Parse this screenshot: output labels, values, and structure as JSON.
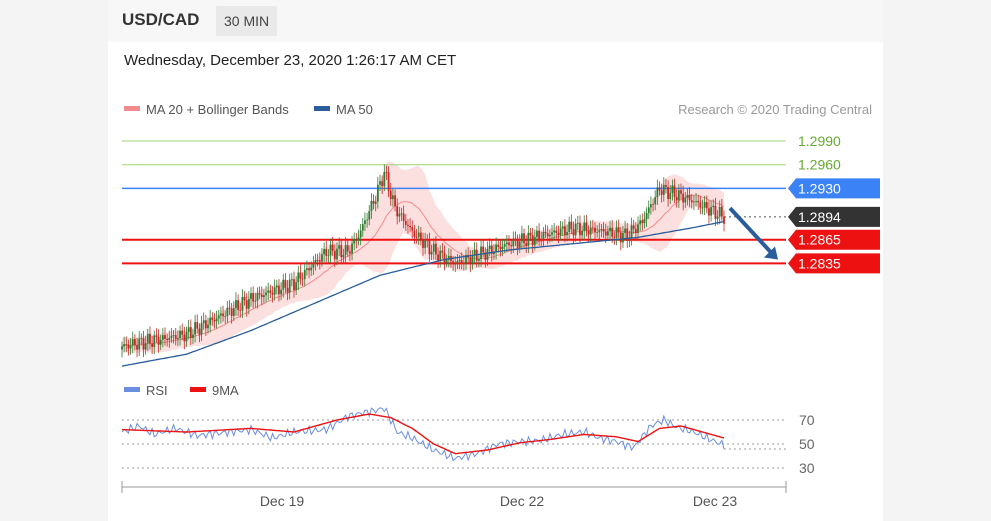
{
  "header": {
    "symbol": "USD/CAD",
    "timeframe": "30 MIN",
    "datetime": "Wednesday, December 23, 2020 1:26:17 AM CET"
  },
  "main_chart": {
    "legend": [
      {
        "label": "MA 20 + Bollinger Bands",
        "color": "#f28b8b"
      },
      {
        "label": "MA 50",
        "color": "#2b5d9b"
      }
    ],
    "credit": "Research © 2020 Trading Central"
  },
  "chart_data": [
    {
      "type": "candlestick",
      "ylim": [
        1.27,
        1.3004
      ],
      "levels": [
        {
          "label": "1.2990",
          "value": 1.299,
          "role": "target",
          "color": "#66aa33"
        },
        {
          "label": "1.2960",
          "value": 1.296,
          "role": "target",
          "color": "#66aa33"
        },
        {
          "label": "1.2930",
          "value": 1.293,
          "role": "resistance",
          "color": "#3b82f6"
        },
        {
          "label": "1.2894",
          "value": 1.2894,
          "role": "last price",
          "color": "#333333"
        },
        {
          "label": "1.2865",
          "value": 1.2865,
          "role": "support",
          "color": "#ee1111"
        },
        {
          "label": "1.2835",
          "value": 1.2835,
          "role": "support",
          "color": "#ee1111"
        }
      ],
      "close_anchors": [
        [
          0,
          1.273
        ],
        [
          10,
          1.2735
        ],
        [
          20,
          1.274
        ],
        [
          30,
          1.2745
        ],
        [
          40,
          1.276
        ],
        [
          50,
          1.2775
        ],
        [
          60,
          1.279
        ],
        [
          70,
          1.28
        ],
        [
          80,
          1.281
        ],
        [
          95,
          1.285
        ],
        [
          105,
          1.285
        ],
        [
          110,
          1.287
        ],
        [
          118,
          1.292
        ],
        [
          122,
          1.295
        ],
        [
          127,
          1.2905
        ],
        [
          135,
          1.2875
        ],
        [
          145,
          1.285
        ],
        [
          155,
          1.2835
        ],
        [
          165,
          1.2845
        ],
        [
          180,
          1.286
        ],
        [
          195,
          1.287
        ],
        [
          210,
          1.288
        ],
        [
          225,
          1.2875
        ],
        [
          235,
          1.287
        ],
        [
          242,
          1.2888
        ],
        [
          250,
          1.293
        ],
        [
          255,
          1.2925
        ],
        [
          265,
          1.2915
        ],
        [
          272,
          1.2905
        ],
        [
          280,
          1.2894
        ]
      ],
      "ma50_anchors": [
        [
          0,
          1.2705
        ],
        [
          30,
          1.272
        ],
        [
          60,
          1.275
        ],
        [
          90,
          1.2785
        ],
        [
          120,
          1.282
        ],
        [
          150,
          1.284
        ],
        [
          180,
          1.2852
        ],
        [
          210,
          1.286
        ],
        [
          240,
          1.2868
        ],
        [
          265,
          1.288
        ],
        [
          280,
          1.2888
        ]
      ],
      "forecast_arrow": {
        "from": 1.2905,
        "to": 1.284
      }
    },
    {
      "type": "line",
      "ylim": [
        20,
        85
      ],
      "yticks": [
        70,
        50,
        30
      ],
      "legend": [
        {
          "label": "RSI",
          "color": "#6b8fe0"
        },
        {
          "label": "9MA",
          "color": "#ee1111"
        }
      ],
      "rsi_anchors": [
        [
          0,
          60
        ],
        [
          8,
          65
        ],
        [
          15,
          58
        ],
        [
          25,
          63
        ],
        [
          35,
          57
        ],
        [
          50,
          60
        ],
        [
          60,
          62
        ],
        [
          70,
          55
        ],
        [
          80,
          60
        ],
        [
          95,
          62
        ],
        [
          105,
          73
        ],
        [
          112,
          76
        ],
        [
          118,
          78
        ],
        [
          122,
          80
        ],
        [
          128,
          60
        ],
        [
          135,
          55
        ],
        [
          145,
          45
        ],
        [
          155,
          38
        ],
        [
          165,
          42
        ],
        [
          175,
          50
        ],
        [
          185,
          52
        ],
        [
          195,
          53
        ],
        [
          205,
          58
        ],
        [
          215,
          60
        ],
        [
          222,
          55
        ],
        [
          230,
          52
        ],
        [
          238,
          47
        ],
        [
          246,
          65
        ],
        [
          252,
          70
        ],
        [
          258,
          64
        ],
        [
          266,
          60
        ],
        [
          272,
          55
        ],
        [
          280,
          49
        ]
      ],
      "ma9_anchors": [
        [
          0,
          62
        ],
        [
          30,
          60
        ],
        [
          60,
          63
        ],
        [
          80,
          60
        ],
        [
          100,
          70
        ],
        [
          115,
          75
        ],
        [
          125,
          72
        ],
        [
          135,
          63
        ],
        [
          145,
          50
        ],
        [
          155,
          42
        ],
        [
          170,
          45
        ],
        [
          185,
          51
        ],
        [
          200,
          54
        ],
        [
          215,
          58
        ],
        [
          230,
          56
        ],
        [
          240,
          52
        ],
        [
          250,
          63
        ],
        [
          260,
          65
        ],
        [
          270,
          60
        ],
        [
          280,
          55
        ]
      ],
      "xaxis_labels": [
        "Dec 19",
        "Dec 22",
        "Dec 23"
      ]
    }
  ]
}
